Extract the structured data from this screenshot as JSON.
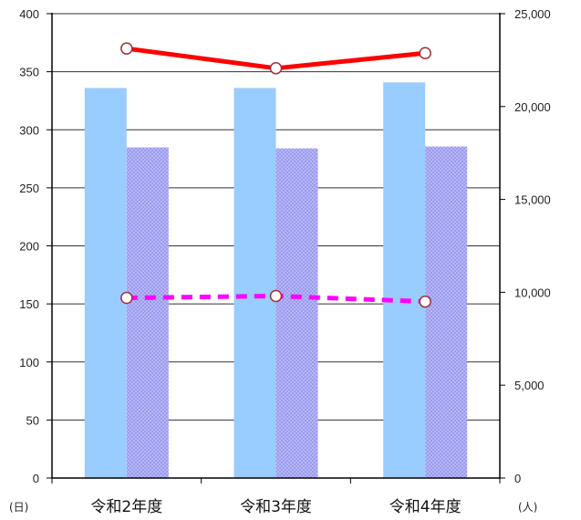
{
  "chart_data": {
    "type": "bar",
    "categories": [
      "令和2年度",
      "令和3年度",
      "令和4年度"
    ],
    "left_axis": {
      "unit_label": "(日)",
      "ylim": [
        0,
        400
      ],
      "ticks": [
        0,
        50,
        100,
        150,
        200,
        250,
        300,
        350,
        400
      ]
    },
    "right_axis": {
      "unit_label": "(人)",
      "ylim": [
        0,
        25000
      ],
      "ticks": [
        "0",
        "5,000",
        "10,000",
        "15,000",
        "20,000",
        "25,000"
      ]
    },
    "grid": true,
    "series": [
      {
        "kind": "bar",
        "axis": "right",
        "color": "#99ccff",
        "pattern": "solid",
        "values": [
          21000,
          21000,
          21300
        ]
      },
      {
        "kind": "bar",
        "axis": "right",
        "color": "#9999ee",
        "pattern": "dotted",
        "values": [
          17800,
          17750,
          17850
        ]
      },
      {
        "kind": "line",
        "axis": "left",
        "color": "#ff0000",
        "style": "solid",
        "marker": "circle",
        "values": [
          370,
          353,
          366
        ]
      },
      {
        "kind": "line",
        "axis": "right",
        "color": "#ff00ff",
        "style": "dashed",
        "marker": "circle",
        "values": [
          9700,
          9800,
          9500
        ]
      }
    ]
  }
}
